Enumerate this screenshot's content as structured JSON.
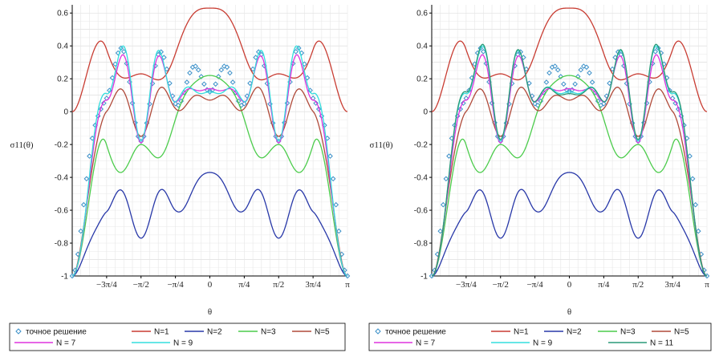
{
  "chart_data": [
    {
      "type": "line",
      "xlabel": "θ",
      "ylabel": "σ11(θ)",
      "xlim": [
        -3.14159,
        3.14159
      ],
      "ylim": [
        -1,
        0.65
      ],
      "y_ticks": [
        "0.6",
        "0.4",
        "0.2",
        "0",
        "-0.2",
        "-0.4",
        "-0.6",
        "-0.8",
        "-1"
      ],
      "x_ticks": [
        {
          "label": "−3π/4",
          "value": -2.3562
        },
        {
          "label": "−π/2",
          "value": -1.5708
        },
        {
          "label": "−π/4",
          "value": -0.7854
        },
        {
          "label": "0",
          "value": 0
        },
        {
          "label": "π/4",
          "value": 0.7854
        },
        {
          "label": "π/2",
          "value": 1.5708
        },
        {
          "label": "3π/4",
          "value": 2.3562
        },
        {
          "label": "π",
          "value": 3.14159
        }
      ],
      "grid": true,
      "legend_position": "bottom",
      "series": [
        {
          "name": "точное решение",
          "color": "#3a8fc8",
          "style": "diamond-markers",
          "x": [
            -3.14,
            -2.36,
            -1.57,
            -0.79,
            0,
            0.79,
            1.57,
            2.36,
            3.14
          ],
          "y": [
            -1,
            0.08,
            -0.18,
            0.05,
            0.12,
            0.05,
            -0.18,
            0.08,
            -1
          ]
        },
        {
          "name": "N=1",
          "color": "#c83c32",
          "x": [
            -3.14,
            -2.36,
            -1.57,
            -0.79,
            0,
            0.79,
            1.57,
            2.36,
            3.14
          ],
          "y": [
            0,
            0.38,
            0.23,
            0.35,
            0.63,
            0.35,
            0.23,
            0.38,
            0
          ]
        },
        {
          "name": "N=2",
          "color": "#2838a8",
          "x": [
            -3.14,
            -2.36,
            -1.57,
            -0.79,
            0,
            0.79,
            1.57,
            2.36,
            3.14
          ],
          "y": [
            -1,
            -0.61,
            -0.77,
            -0.6,
            -0.37,
            -0.6,
            -0.77,
            -0.61,
            -1
          ]
        },
        {
          "name": "N=3",
          "color": "#4ccc4c",
          "x": [
            -3.14,
            -2.36,
            -1.57,
            -0.79,
            0,
            0.79,
            1.57,
            2.36,
            3.14
          ],
          "y": [
            -1,
            -0.2,
            -0.2,
            -0.05,
            0.22,
            -0.05,
            -0.2,
            -0.2,
            -1
          ]
        },
        {
          "name": "N=5",
          "color": "#b04a3a",
          "x": [
            -3.14,
            -2.36,
            -1.57,
            -0.79,
            0,
            0.79,
            1.57,
            2.36,
            3.14
          ],
          "y": [
            -1,
            0,
            -0.15,
            0.02,
            0.07,
            0.02,
            -0.15,
            0,
            -1
          ]
        },
        {
          "name": "N = 7",
          "color": "#dd33dd",
          "x": [
            -3.14,
            -2.36,
            -1.57,
            -0.79,
            0,
            0.79,
            1.57,
            2.36,
            3.14
          ],
          "y": [
            -1,
            0.07,
            -0.19,
            0.06,
            0.14,
            0.06,
            -0.19,
            0.07,
            -1
          ]
        },
        {
          "name": "N = 9",
          "color": "#33dddd",
          "x": [
            -3.14,
            -2.36,
            -1.57,
            -0.79,
            0,
            0.79,
            1.57,
            2.36,
            3.14
          ],
          "y": [
            -1,
            0.11,
            -0.18,
            0.06,
            0.12,
            0.06,
            -0.18,
            0.11,
            -1
          ]
        }
      ]
    },
    {
      "type": "line",
      "xlabel": "θ",
      "ylabel": "σ11(θ)",
      "xlim": [
        -3.14159,
        3.14159
      ],
      "ylim": [
        -1,
        0.65
      ],
      "y_ticks": [
        "0.6",
        "0.4",
        "0.2",
        "0",
        "-0.2",
        "-0.4",
        "-0.6",
        "-0.8",
        "-1"
      ],
      "x_ticks": [
        {
          "label": "−3π/4",
          "value": -2.3562
        },
        {
          "label": "−π/2",
          "value": -1.5708
        },
        {
          "label": "−π/4",
          "value": -0.7854
        },
        {
          "label": "0",
          "value": 0
        },
        {
          "label": "π/4",
          "value": 0.7854
        },
        {
          "label": "π/2",
          "value": 1.5708
        },
        {
          "label": "3π/4",
          "value": 2.3562
        },
        {
          "label": "π",
          "value": 3.14159
        }
      ],
      "grid": true,
      "legend_position": "bottom",
      "series": [
        {
          "name": "точное решение",
          "color": "#3a8fc8",
          "style": "diamond-markers",
          "x": [
            -3.14,
            -2.36,
            -1.57,
            -0.79,
            0,
            0.79,
            1.57,
            2.36,
            3.14
          ],
          "y": [
            -1,
            0.08,
            -0.18,
            0.05,
            0.12,
            0.05,
            -0.18,
            0.08,
            -1
          ]
        },
        {
          "name": "N=1",
          "color": "#c83c32",
          "x": [
            -3.14,
            -2.36,
            -1.57,
            -0.79,
            0,
            0.79,
            1.57,
            2.36,
            3.14
          ],
          "y": [
            0,
            0.38,
            0.23,
            0.35,
            0.63,
            0.35,
            0.23,
            0.38,
            0
          ]
        },
        {
          "name": "N=2",
          "color": "#2838a8",
          "x": [
            -3.14,
            -2.36,
            -1.57,
            -0.79,
            0,
            0.79,
            1.57,
            2.36,
            3.14
          ],
          "y": [
            -1,
            -0.61,
            -0.77,
            -0.6,
            -0.37,
            -0.6,
            -0.77,
            -0.61,
            -1
          ]
        },
        {
          "name": "N=3",
          "color": "#4ccc4c",
          "x": [
            -3.14,
            -2.36,
            -1.57,
            -0.79,
            0,
            0.79,
            1.57,
            2.36,
            3.14
          ],
          "y": [
            -1,
            -0.2,
            -0.2,
            -0.05,
            0.22,
            -0.05,
            -0.2,
            -0.2,
            -1
          ]
        },
        {
          "name": "N=5",
          "color": "#b04a3a",
          "x": [
            -3.14,
            -2.36,
            -1.57,
            -0.79,
            0,
            0.79,
            1.57,
            2.36,
            3.14
          ],
          "y": [
            -1,
            0,
            -0.15,
            0.02,
            0.07,
            0.02,
            -0.15,
            0,
            -1
          ]
        },
        {
          "name": "N = 7",
          "color": "#dd33dd",
          "x": [
            -3.14,
            -2.36,
            -1.57,
            -0.79,
            0,
            0.79,
            1.57,
            2.36,
            3.14
          ],
          "y": [
            -1,
            0.07,
            -0.19,
            0.06,
            0.14,
            0.06,
            -0.19,
            0.07,
            -1
          ]
        },
        {
          "name": "N = 9",
          "color": "#33dddd",
          "x": [
            -3.14,
            -2.36,
            -1.57,
            -0.79,
            0,
            0.79,
            1.57,
            2.36,
            3.14
          ],
          "y": [
            -1,
            0.11,
            -0.18,
            0.06,
            0.12,
            0.06,
            -0.18,
            0.11,
            -1
          ]
        },
        {
          "name": "N = 11",
          "color": "#2a9a78",
          "x": [
            -3.14,
            -2.36,
            -1.57,
            -0.79,
            0,
            0.79,
            1.57,
            2.36,
            3.14
          ],
          "y": [
            -1,
            0.12,
            -0.17,
            0.06,
            0.11,
            0.06,
            -0.17,
            0.12,
            -1
          ]
        }
      ]
    }
  ]
}
